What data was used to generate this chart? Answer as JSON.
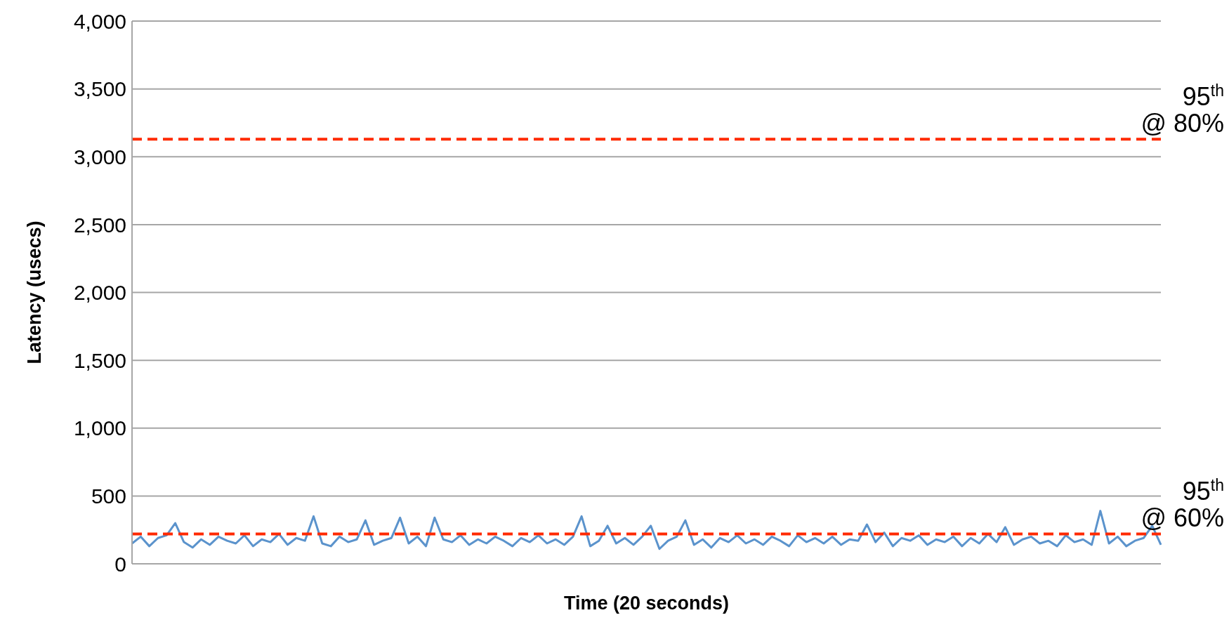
{
  "chart_data": {
    "type": "line",
    "xlabel": "Time (20 seconds)",
    "ylabel": "Latency (usecs)",
    "categories": [
      null,
      null,
      null,
      null,
      null,
      null,
      null,
      null,
      null,
      null,
      null,
      null,
      null,
      null,
      null,
      null,
      null,
      null,
      null,
      null,
      null,
      null,
      null,
      null,
      null,
      null,
      null,
      null,
      null,
      null,
      null,
      null,
      null,
      null,
      null,
      null,
      null,
      null,
      null,
      null,
      null,
      null,
      null,
      null,
      null,
      null,
      null,
      null,
      null,
      null,
      null,
      null,
      null,
      null,
      null,
      null,
      null,
      null,
      null,
      null,
      null,
      null,
      null,
      null,
      null,
      null,
      null,
      null,
      null,
      null,
      null,
      null,
      null,
      null,
      null,
      null,
      null,
      null,
      null,
      null,
      null,
      null,
      null,
      null,
      null,
      null,
      null,
      null,
      null,
      null,
      null,
      null,
      null,
      null,
      null,
      null,
      null,
      null,
      null,
      null,
      null,
      null,
      null,
      null,
      null,
      null,
      null,
      null,
      null,
      null,
      null,
      null,
      null,
      null,
      null,
      null,
      null,
      null,
      null,
      null
    ],
    "series": [
      {
        "color": "#5b93cc",
        "values": [
          150,
          200,
          130,
          190,
          210,
          300,
          160,
          120,
          180,
          140,
          200,
          170,
          150,
          210,
          130,
          180,
          160,
          220,
          140,
          190,
          170,
          350,
          150,
          130,
          200,
          160,
          180,
          320,
          140,
          170,
          190,
          340,
          150,
          200,
          130,
          340,
          180,
          160,
          210,
          140,
          180,
          150,
          200,
          170,
          130,
          190,
          160,
          210,
          150,
          180,
          140,
          200,
          350,
          130,
          170,
          280,
          150,
          190,
          140,
          200,
          280,
          110,
          170,
          200,
          320,
          140,
          180,
          120,
          190,
          160,
          210,
          150,
          180,
          140,
          200,
          170,
          130,
          210,
          160,
          190,
          150,
          200,
          140,
          180,
          170,
          290,
          160,
          230,
          130,
          190,
          170,
          210,
          140,
          180,
          160,
          200,
          130,
          190,
          150,
          220,
          160,
          270,
          140,
          180,
          200,
          150,
          170,
          130,
          210,
          160,
          180,
          140,
          390,
          150,
          200,
          130,
          170,
          190,
          280,
          140
        ]
      }
    ],
    "ylim": [
      0,
      4000
    ],
    "yticks": [
      0,
      {
        "value": 500,
        "label": "500"
      },
      {
        "value": 1000,
        "label": "1,000"
      },
      {
        "value": 1500,
        "label": "1,500"
      },
      {
        "value": 2000,
        "label": "2,000"
      },
      {
        "value": 2500,
        "label": "2,500"
      },
      {
        "value": 3000,
        "label": "3,000"
      },
      {
        "value": 3500,
        "label": "3,500"
      },
      {
        "value": 4000,
        "label": "4,000"
      }
    ],
    "grid": "y",
    "legend": false,
    "marker": "none",
    "line_style": "solid",
    "ref_lines": [
      {
        "axis": "y",
        "value": 3130,
        "label": "95$^{th}$ @ 80%",
        "color": "#ff2a00",
        "line_style": "dashed"
      },
      {
        "axis": "y",
        "value": 220,
        "label": "95$^{th}$ @ 60%",
        "color": "#ff2a00",
        "line_style": "dashed"
      }
    ]
  }
}
